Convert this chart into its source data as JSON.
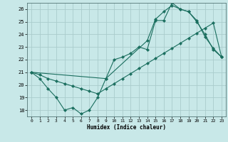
{
  "title": "",
  "xlabel": "Humidex (Indice chaleur)",
  "bg_color": "#c8e8e8",
  "grid_color": "#aacccc",
  "line_color": "#1a6e5e",
  "xlim": [
    -0.5,
    23.5
  ],
  "ylim": [
    17.5,
    26.5
  ],
  "yticks": [
    18,
    19,
    20,
    21,
    22,
    23,
    24,
    25,
    26
  ],
  "xticks": [
    0,
    1,
    2,
    3,
    4,
    5,
    6,
    7,
    8,
    9,
    10,
    11,
    12,
    13,
    14,
    15,
    16,
    17,
    18,
    19,
    20,
    21,
    22,
    23
  ],
  "line1_x": [
    0,
    1,
    2,
    3,
    4,
    5,
    6,
    7,
    8,
    9,
    10,
    11,
    12,
    13,
    14,
    15,
    16,
    17,
    18,
    19,
    20,
    21,
    22,
    23
  ],
  "line1_y": [
    21.0,
    20.5,
    19.7,
    19.0,
    18.0,
    18.2,
    17.7,
    18.0,
    19.0,
    20.5,
    22.0,
    22.2,
    22.5,
    23.0,
    22.8,
    25.1,
    25.1,
    26.5,
    26.0,
    25.8,
    25.0,
    24.0,
    22.8,
    22.2
  ],
  "line2_x": [
    0,
    1,
    2,
    3,
    4,
    5,
    6,
    7,
    8,
    9,
    10,
    11,
    12,
    13,
    14,
    15,
    16,
    17,
    18,
    19,
    20,
    21,
    22,
    23
  ],
  "line2_y": [
    21.0,
    20.8,
    20.5,
    20.3,
    20.1,
    19.9,
    19.7,
    19.5,
    19.3,
    19.7,
    20.1,
    20.5,
    20.9,
    21.3,
    21.7,
    22.1,
    22.5,
    22.9,
    23.3,
    23.7,
    24.1,
    24.5,
    24.9,
    22.2
  ],
  "line3_x": [
    0,
    9,
    14,
    15,
    16,
    17,
    18,
    19,
    20,
    21,
    22,
    23
  ],
  "line3_y": [
    21.0,
    20.5,
    23.5,
    25.2,
    25.8,
    26.3,
    26.0,
    25.8,
    25.1,
    23.8,
    22.9,
    22.2
  ]
}
